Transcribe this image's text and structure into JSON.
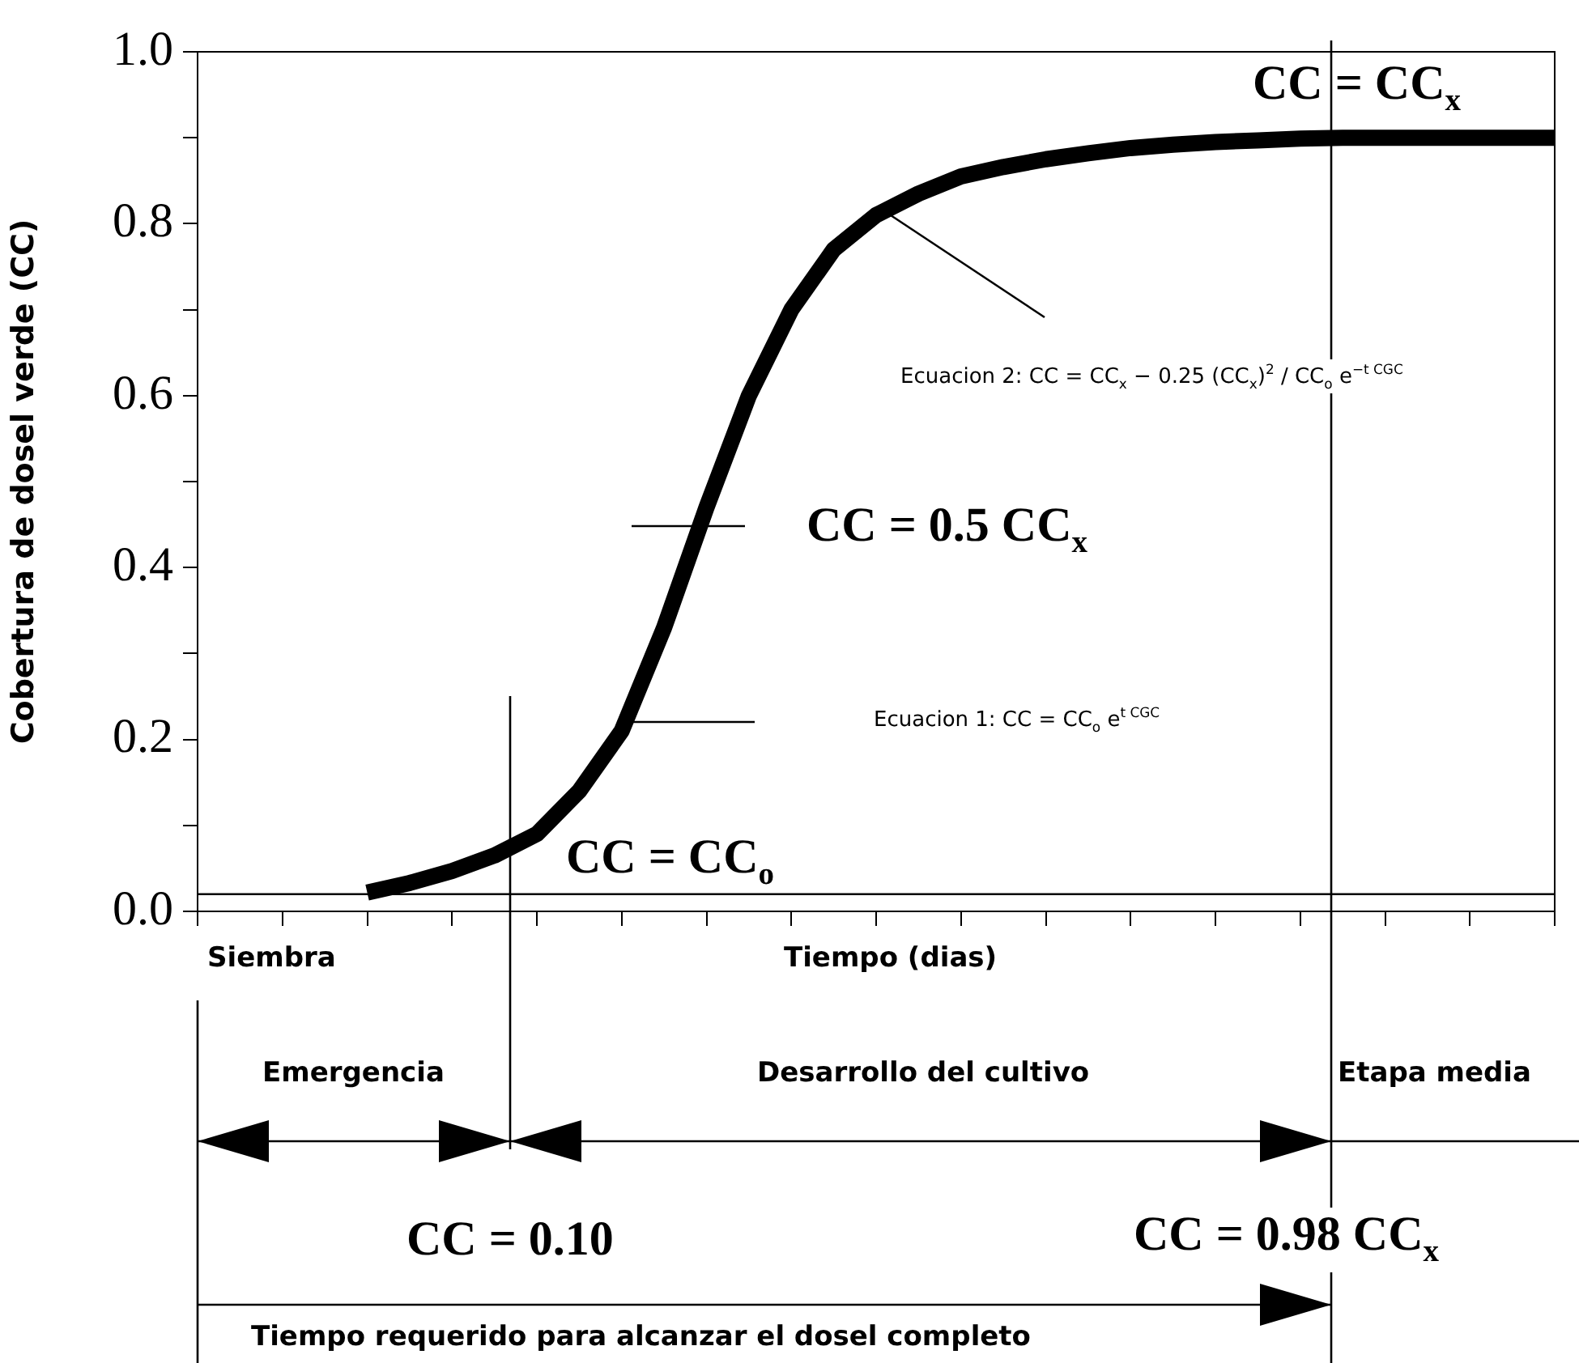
{
  "chart_data": {
    "type": "line",
    "ylabel": "Cobertura de dosel verde (CC)",
    "xlabel": "Tiempo (dias)",
    "categories": [
      null,
      null,
      null,
      null,
      null,
      null,
      null,
      null,
      null,
      null,
      null,
      null,
      null,
      null,
      null,
      null,
      null,
      null,
      null,
      null,
      null,
      null,
      null,
      null,
      null,
      null,
      null,
      null,
      null,
      null,
      null,
      null,
      null
    ],
    "series": [
      {
        "color": "#000000",
        "values": [
          null,
          null,
          null,
          null,
          0.022,
          0.033,
          0.047,
          0.065,
          0.09,
          0.14,
          0.21,
          0.33,
          0.47,
          0.6,
          0.7,
          0.77,
          0.81,
          0.835,
          0.855,
          0.866,
          0.875,
          0.882,
          0.888,
          0.892,
          0.895,
          0.897,
          0.899,
          0.9,
          0.9,
          0.9,
          0.9,
          0.9,
          0.9
        ]
      }
    ],
    "ylim": [
      0,
      1
    ],
    "yticks": [
      {
        "value": 0,
        "label": "0.0"
      },
      {
        "value": 0.1,
        "label": null
      },
      {
        "value": 0.2,
        "label": "0.2"
      },
      {
        "value": 0.3,
        "label": null
      },
      {
        "value": 0.4,
        "label": "0.4"
      },
      {
        "value": 0.5,
        "label": null
      },
      {
        "value": 0.6,
        "label": "0.6"
      },
      {
        "value": 0.7,
        "label": null
      },
      {
        "value": 0.8,
        "label": "0.8"
      },
      {
        "value": 0.9,
        "label": null
      },
      {
        "value": 1,
        "label": "1.0"
      }
    ],
    "tick_labels": "y",
    "grid": false,
    "legend": false,
    "marker": "none",
    "ref_lines": [
      {
        "axis": "y",
        "value": 0.02,
        "label": "CC = CC$_{o}$",
        "color": "#000000"
      }
    ],
    "annotations": [
      "CC = CC$_{x}$",
      "CC = 0.5 CC$_{x}$",
      "Ecuacion 1:  CC = CC$_{o}$ e$^{t CGC}$",
      "Ecuacion 2:  CC = CC$_{x}$ − 0.25 (CC$_{x}$)$^{2}$ / CC$_{o}$ e$^{−t CGC}$",
      "Siembra",
      "Emergencia",
      "Desarrollo del cultivo",
      "Etapa media",
      "CC = 0.10",
      "CC = 0.98 CC$_{x}$",
      "Tiempo requerido para alcanzar el dosel completo"
    ]
  }
}
